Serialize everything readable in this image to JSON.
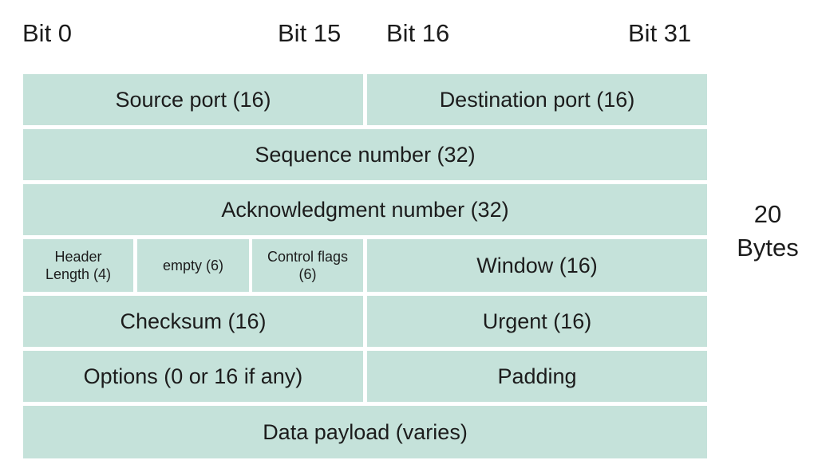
{
  "bit_labels": {
    "bit0": "Bit 0",
    "bit15": "Bit 15",
    "bit16": "Bit 16",
    "bit31": "Bit 31"
  },
  "fields": {
    "source_port": "Source port (16)",
    "destination_port": "Destination port (16)",
    "sequence_number": "Sequence number (32)",
    "acknowledgment_number": "Acknowledgment number (32)",
    "header_length_line1": "Header",
    "header_length_line2": "Length (4)",
    "empty": "empty (6)",
    "control_flags_line1": "Control flags",
    "control_flags_line2": "(6)",
    "window": "Window (16)",
    "checksum": "Checksum (16)",
    "urgent": "Urgent (16)",
    "options": "Options (0 or 16 if any)",
    "padding": "Padding",
    "data_payload": "Data payload (varies)"
  },
  "side_note": {
    "line1": "20",
    "line2": "Bytes"
  },
  "colors": {
    "cell_fill": "#c5e2da",
    "divider": "#ffffff",
    "text": "#1c1c1c"
  }
}
